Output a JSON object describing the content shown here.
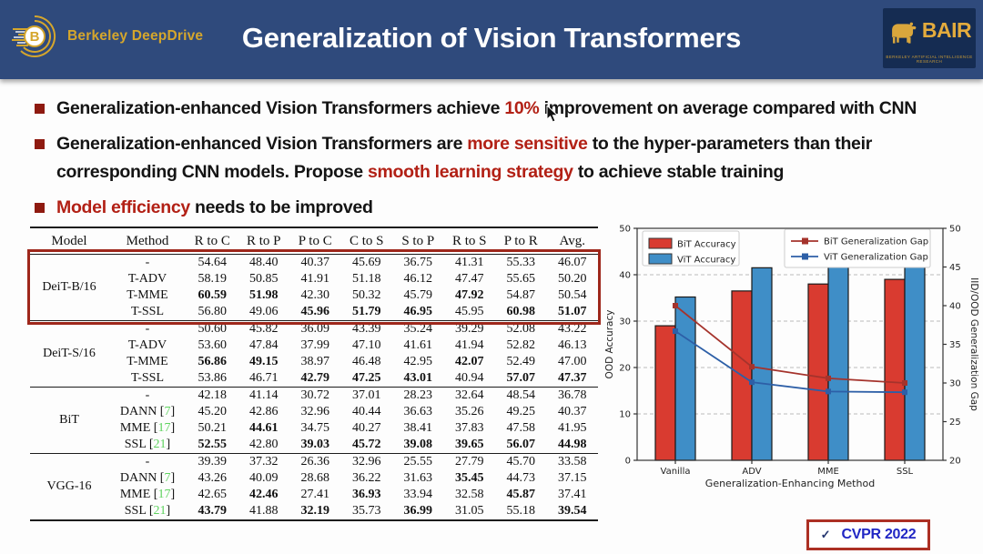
{
  "header": {
    "title": "Generalization of Vision Transformers",
    "logo_text": "Berkeley DeepDrive",
    "bair_name": "BAIR",
    "bair_caption": "BERKELEY ARTIFICIAL INTELLIGENCE RESEARCH"
  },
  "bullets": [
    {
      "segments": [
        {
          "t": "Generalization-enhanced Vision Transformers achieve ",
          "red": false
        },
        {
          "t": "10%",
          "red": true
        },
        {
          "t": " improvement on average compared with CNN",
          "red": false
        }
      ]
    },
    {
      "segments": [
        {
          "t": "Generalization-enhanced Vision Transformers are ",
          "red": false
        },
        {
          "t": "more sensitive",
          "red": true
        },
        {
          "t": " to the hyper-parameters than their corresponding CNN models. Propose ",
          "red": false
        },
        {
          "t": "smooth learning strategy",
          "red": true
        },
        {
          "t": " to achieve stable training",
          "red": false
        }
      ]
    },
    {
      "segments": [
        {
          "t": "Model efficiency",
          "red": true
        },
        {
          "t": " needs to be improved",
          "red": false
        }
      ]
    }
  ],
  "table": {
    "headers": [
      "Model",
      "Method",
      "R to C",
      "R to P",
      "P to C",
      "C to S",
      "S to P",
      "R to S",
      "P to R",
      "Avg."
    ],
    "sections": [
      {
        "model": "DeiT-B/16",
        "highlight": true,
        "rows": [
          {
            "method": "-",
            "cite": "",
            "values": [
              "54.64",
              "48.40",
              "40.37",
              "45.69",
              "36.75",
              "41.31",
              "55.33",
              "46.07"
            ],
            "bold": [
              0,
              0,
              0,
              0,
              0,
              0,
              0,
              0
            ]
          },
          {
            "method": "T-ADV",
            "cite": "",
            "values": [
              "58.19",
              "50.85",
              "41.91",
              "51.18",
              "46.12",
              "47.47",
              "55.65",
              "50.20"
            ],
            "bold": [
              0,
              0,
              0,
              0,
              0,
              0,
              0,
              0
            ]
          },
          {
            "method": "T-MME",
            "cite": "",
            "values": [
              "60.59",
              "51.98",
              "42.30",
              "50.32",
              "45.79",
              "47.92",
              "54.87",
              "50.54"
            ],
            "bold": [
              1,
              1,
              0,
              0,
              0,
              1,
              0,
              0
            ]
          },
          {
            "method": "T-SSL",
            "cite": "",
            "values": [
              "56.80",
              "49.06",
              "45.96",
              "51.79",
              "46.95",
              "45.95",
              "60.98",
              "51.07"
            ],
            "bold": [
              0,
              0,
              1,
              1,
              1,
              0,
              1,
              1
            ]
          }
        ]
      },
      {
        "model": "DeiT-S/16",
        "highlight": false,
        "rows": [
          {
            "method": "-",
            "cite": "",
            "values": [
              "50.60",
              "45.82",
              "36.09",
              "43.39",
              "35.24",
              "39.29",
              "52.08",
              "43.22"
            ],
            "bold": [
              0,
              0,
              0,
              0,
              0,
              0,
              0,
              0
            ]
          },
          {
            "method": "T-ADV",
            "cite": "",
            "values": [
              "53.60",
              "47.84",
              "37.99",
              "47.10",
              "41.61",
              "41.94",
              "52.82",
              "46.13"
            ],
            "bold": [
              0,
              0,
              0,
              0,
              0,
              0,
              0,
              0
            ]
          },
          {
            "method": "T-MME",
            "cite": "",
            "values": [
              "56.86",
              "49.15",
              "38.97",
              "46.48",
              "42.95",
              "42.07",
              "52.49",
              "47.00"
            ],
            "bold": [
              1,
              1,
              0,
              0,
              0,
              1,
              0,
              0
            ]
          },
          {
            "method": "T-SSL",
            "cite": "",
            "values": [
              "53.86",
              "46.71",
              "42.79",
              "47.25",
              "43.01",
              "40.94",
              "57.07",
              "47.37"
            ],
            "bold": [
              0,
              0,
              1,
              1,
              1,
              0,
              1,
              1
            ]
          }
        ]
      },
      {
        "model": "BiT",
        "highlight": false,
        "rows": [
          {
            "method": "-",
            "cite": "",
            "values": [
              "42.18",
              "41.14",
              "30.72",
              "37.01",
              "28.23",
              "32.64",
              "48.54",
              "36.78"
            ],
            "bold": [
              0,
              0,
              0,
              0,
              0,
              0,
              0,
              0
            ]
          },
          {
            "method": "DANN",
            "cite": "7",
            "values": [
              "45.20",
              "42.86",
              "32.96",
              "40.44",
              "36.63",
              "35.26",
              "49.25",
              "40.37"
            ],
            "bold": [
              0,
              0,
              0,
              0,
              0,
              0,
              0,
              0
            ]
          },
          {
            "method": "MME",
            "cite": "17",
            "values": [
              "50.21",
              "44.61",
              "34.75",
              "40.27",
              "38.41",
              "37.83",
              "47.58",
              "41.95"
            ],
            "bold": [
              0,
              1,
              0,
              0,
              0,
              0,
              0,
              0
            ]
          },
          {
            "method": "SSL",
            "cite": "21",
            "values": [
              "52.55",
              "42.80",
              "39.03",
              "45.72",
              "39.08",
              "39.65",
              "56.07",
              "44.98"
            ],
            "bold": [
              1,
              0,
              1,
              1,
              1,
              1,
              1,
              1
            ]
          }
        ]
      },
      {
        "model": "VGG-16",
        "highlight": false,
        "rows": [
          {
            "method": "-",
            "cite": "",
            "values": [
              "39.39",
              "37.32",
              "26.36",
              "32.96",
              "25.55",
              "27.79",
              "45.70",
              "33.58"
            ],
            "bold": [
              0,
              0,
              0,
              0,
              0,
              0,
              0,
              0
            ]
          },
          {
            "method": "DANN",
            "cite": "7",
            "values": [
              "43.26",
              "40.09",
              "28.68",
              "36.22",
              "31.63",
              "35.45",
              "44.73",
              "37.15"
            ],
            "bold": [
              0,
              0,
              0,
              0,
              0,
              1,
              0,
              0
            ]
          },
          {
            "method": "MME",
            "cite": "17",
            "values": [
              "42.65",
              "42.46",
              "27.41",
              "36.93",
              "33.94",
              "32.58",
              "45.87",
              "37.41"
            ],
            "bold": [
              0,
              1,
              0,
              1,
              0,
              0,
              1,
              0
            ]
          },
          {
            "method": "SSL",
            "cite": "21",
            "values": [
              "43.79",
              "41.88",
              "32.19",
              "35.73",
              "36.99",
              "31.05",
              "55.18",
              "39.54"
            ],
            "bold": [
              1,
              0,
              1,
              0,
              1,
              0,
              0,
              1
            ]
          }
        ]
      }
    ]
  },
  "chart_data": {
    "type": "bar",
    "subtype": "grouped bars + overlaid lines, dual y-axis",
    "categories": [
      "Vanilla",
      "ADV",
      "MME",
      "SSL"
    ],
    "series": [
      {
        "name": "BiT Accuracy",
        "kind": "bar",
        "axis": "left",
        "color": "#d93b30",
        "values": [
          29,
          36.5,
          38,
          39
        ]
      },
      {
        "name": "ViT Accuracy",
        "kind": "bar",
        "axis": "left",
        "color": "#3f8ec7",
        "values": [
          35.2,
          41.5,
          44,
          44
        ]
      },
      {
        "name": "BiT Generalization Gap",
        "kind": "line",
        "axis": "right",
        "color": "#a5332c",
        "values": [
          40,
          32.1,
          30.6,
          30
        ]
      },
      {
        "name": "ViT Generalization Gap",
        "kind": "line",
        "axis": "right",
        "color": "#2d5fa7",
        "values": [
          36.7,
          30.1,
          28.9,
          28.8
        ]
      }
    ],
    "xlabel": "Generalization-Enhancing Method",
    "ylabel_left": "OOD Accuracy",
    "ylabel_right": "IID/OOD Generalization Gap",
    "ylim_left": [
      0,
      50
    ],
    "ylim_right": [
      20,
      50
    ],
    "yticks_left": [
      0,
      10,
      20,
      30,
      40,
      50
    ],
    "yticks_right": [
      20,
      25,
      30,
      35,
      40,
      45,
      50
    ],
    "grid": "horizontal dashed at left ticks",
    "legend_position": "two boxes, upper left (bars) and upper right (lines)"
  },
  "badge": {
    "check": "✓",
    "label": "CVPR 2022"
  }
}
